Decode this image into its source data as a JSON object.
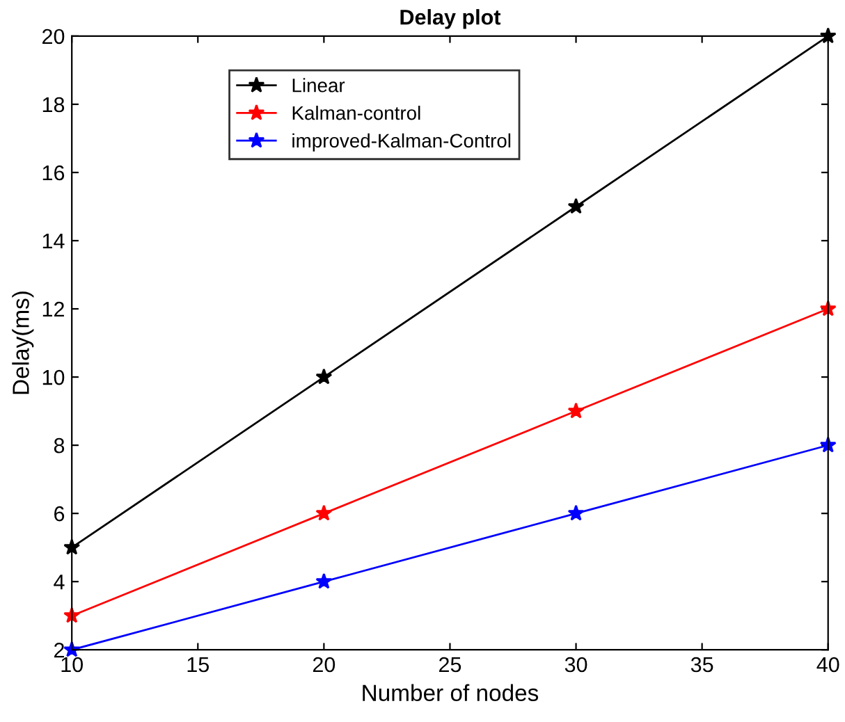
{
  "chart_data": {
    "type": "line",
    "title": "Delay plot",
    "xlabel": "Number of nodes",
    "ylabel": "Delay(ms)",
    "x": [
      10,
      20,
      30,
      40
    ],
    "series": [
      {
        "name": "Linear",
        "color": "#000000",
        "values": [
          5,
          10,
          15,
          20
        ]
      },
      {
        "name": "Kalman-control",
        "color": "#ff0000",
        "values": [
          3,
          6,
          9,
          12
        ]
      },
      {
        "name": "improved-Kalman-Control",
        "color": "#0000ff",
        "values": [
          2,
          4,
          6,
          8
        ]
      }
    ],
    "xlim": [
      10,
      40
    ],
    "xticks": [
      10,
      15,
      20,
      25,
      30,
      35,
      40
    ],
    "ylim": [
      2,
      20
    ],
    "yticks": [
      2,
      4,
      6,
      8,
      10,
      12,
      14,
      16,
      18,
      20
    ],
    "marker": "star",
    "line_style": "solid",
    "grid": false,
    "legend": "top"
  }
}
